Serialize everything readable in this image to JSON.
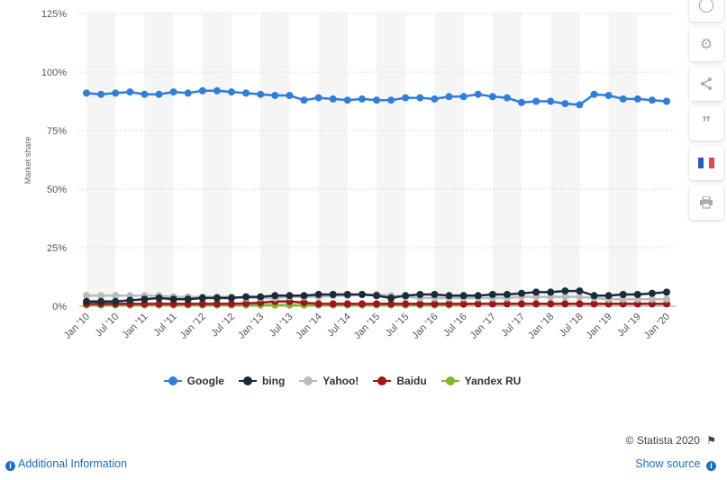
{
  "chart_data": {
    "type": "line",
    "title": "",
    "xlabel": "",
    "ylabel": "Market share",
    "ylim": [
      0,
      1.25
    ],
    "yticks": [
      "0%",
      "25%",
      "50%",
      "75%",
      "100%",
      "125%"
    ],
    "x_tick_labels": [
      "Jan '10",
      "Jul '10",
      "Jan '11",
      "Jul '11",
      "Jan '12",
      "Jul '12",
      "Jan '13",
      "Jul '13",
      "Jan '14",
      "Jul '14",
      "Jan '15",
      "Jul '15",
      "Jan '16",
      "Jul '16",
      "Jan '17",
      "Jul '17",
      "Jan '18",
      "Jul '18",
      "Jan '19",
      "Jul '19",
      "Jan '20"
    ],
    "grid": true,
    "legend": "bottom",
    "series": [
      {
        "name": "Google",
        "color": "#2f7ed8",
        "values": [
          0.91,
          0.905,
          0.91,
          0.915,
          0.905,
          0.905,
          0.915,
          0.91,
          0.92,
          0.92,
          0.915,
          0.91,
          0.905,
          0.9,
          0.9,
          0.88,
          0.89,
          0.885,
          0.88,
          0.885,
          0.88,
          0.88,
          0.89,
          0.89,
          0.885,
          0.895,
          0.895,
          0.905,
          0.895,
          0.89,
          0.87,
          0.875,
          0.875,
          0.865,
          0.86,
          0.905,
          0.9,
          0.885,
          0.885,
          0.88,
          0.875
        ]
      },
      {
        "name": "bing",
        "color": "#1a2b3c",
        "values": [
          0.02,
          0.02,
          0.02,
          0.025,
          0.03,
          0.035,
          0.03,
          0.03,
          0.035,
          0.035,
          0.035,
          0.04,
          0.04,
          0.045,
          0.045,
          0.045,
          0.05,
          0.05,
          0.05,
          0.05,
          0.045,
          0.035,
          0.045,
          0.05,
          0.05,
          0.045,
          0.045,
          0.045,
          0.05,
          0.05,
          0.055,
          0.06,
          0.06,
          0.065,
          0.065,
          0.045,
          0.045,
          0.05,
          0.05,
          0.055,
          0.06
        ]
      },
      {
        "name": "Yahoo!",
        "color": "#bbbbbb",
        "values": [
          0.045,
          0.045,
          0.045,
          0.045,
          0.045,
          0.045,
          0.04,
          0.04,
          0.04,
          0.04,
          0.04,
          0.035,
          0.035,
          0.035,
          0.04,
          0.04,
          0.04,
          0.045,
          0.045,
          0.05,
          0.05,
          0.045,
          0.04,
          0.035,
          0.035,
          0.035,
          0.035,
          0.035,
          0.035,
          0.035,
          0.04,
          0.04,
          0.04,
          0.04,
          0.04,
          0.035,
          0.03,
          0.03,
          0.03,
          0.03,
          0.03
        ]
      },
      {
        "name": "Baidu",
        "color": "#a01515",
        "values": [
          0.01,
          0.01,
          0.01,
          0.01,
          0.01,
          0.01,
          0.01,
          0.01,
          0.01,
          0.01,
          0.01,
          0.012,
          0.015,
          0.02,
          0.02,
          0.015,
          0.01,
          0.01,
          0.01,
          0.01,
          0.01,
          0.01,
          0.01,
          0.01,
          0.01,
          0.01,
          0.01,
          0.01,
          0.01,
          0.01,
          0.01,
          0.01,
          0.01,
          0.01,
          0.01,
          0.01,
          0.01,
          0.01,
          0.01,
          0.01,
          0.01
        ]
      },
      {
        "name": "Yandex RU",
        "color": "#7dbb2a",
        "values": [
          0.005,
          0.005,
          0.005,
          0.005,
          0.005,
          0.005,
          0.005,
          0.005,
          0.005,
          0.005,
          0.005,
          0.005,
          0.005,
          0.005,
          0.005,
          0.005,
          0.005,
          0.005,
          0.005,
          0.005,
          0.005,
          0.005,
          0.005,
          0.005,
          0.005,
          0.005,
          0.008,
          0.01,
          0.01,
          0.01,
          0.01,
          0.01,
          0.01,
          0.01,
          0.01,
          0.01,
          0.01,
          0.01,
          0.01,
          0.01,
          0.01
        ]
      }
    ]
  },
  "toolbar": {
    "icons": [
      "bell-icon",
      "gear-icon",
      "share-icon",
      "quote-icon",
      "flag-fr-icon",
      "print-icon"
    ]
  },
  "footer": {
    "copyright": "© Statista 2020",
    "additional_info": "Additional Information",
    "show_source": "Show source"
  }
}
